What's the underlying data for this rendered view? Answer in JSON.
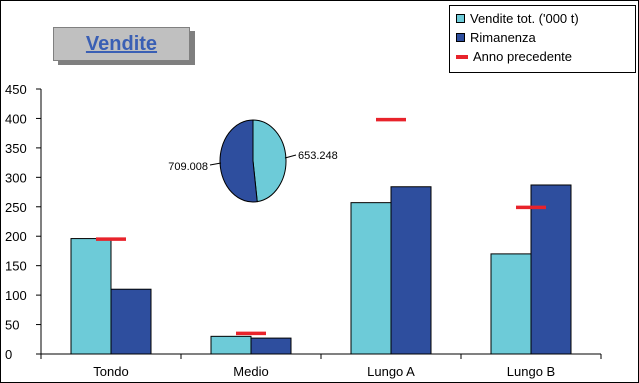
{
  "chart_data": {
    "type": "bar",
    "title": "Vendite",
    "categories": [
      "Tondo",
      "Medio",
      "Lungo A",
      "Lungo B"
    ],
    "series": [
      {
        "name": "Vendite tot. ('000 t)",
        "values": [
          196,
          30,
          257,
          170
        ],
        "color": "#6dcbd8"
      },
      {
        "name": "Rimanenza",
        "values": [
          110,
          27,
          284,
          287
        ],
        "color": "#2e4e9e"
      }
    ],
    "previous": {
      "name": "Anno precedente",
      "values": [
        195,
        35,
        398,
        249
      ],
      "color": "#e8232b"
    },
    "ylim": [
      0,
      450
    ],
    "yticks": [
      0,
      50,
      100,
      150,
      200,
      250,
      300,
      350,
      400,
      450
    ],
    "ytick_labels": [
      "0",
      "50",
      "100",
      "150",
      "200",
      "250",
      "300",
      "350",
      "400",
      "450"
    ],
    "pie": {
      "slices": [
        {
          "label": "653.248",
          "value": 653.248,
          "color": "#6dcbd8"
        },
        {
          "label": "709.008",
          "value": 709.008,
          "color": "#2e4e9e"
        }
      ]
    },
    "legend_position": "top-right"
  }
}
